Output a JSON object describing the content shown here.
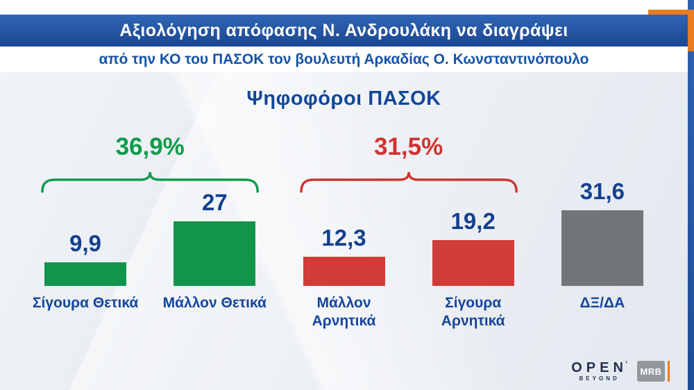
{
  "header": {
    "line1": "Αξιολόγηση απόφασης Ν. Ανδρουλάκη να διαγράψει",
    "line2": "από την ΚΟ του ΠΑΣΟΚ τον βουλευτή Αρκαδίας Ο. Κωνσταντινόπουλο"
  },
  "chart_data": {
    "type": "bar",
    "title": "Ψηφοφόροι ΠΑΣΟΚ",
    "categories": [
      "Σίγουρα Θετικά",
      "Μάλλον Θετικά",
      "Μάλλον Αρνητικά",
      "Σίγουρα Αρνητικά",
      "ΔΞ/ΔΑ"
    ],
    "values": [
      9.9,
      27,
      12.3,
      19.2,
      31.6
    ],
    "value_labels": [
      "9,9",
      "27",
      "12,3",
      "19,2",
      "31,6"
    ],
    "bar_colors": [
      "#12954a",
      "#12954a",
      "#d03c37",
      "#d03c37",
      "#737679"
    ],
    "groups": [
      {
        "label": "36,9%",
        "color": "#0f9b4a",
        "span": [
          0,
          1
        ]
      },
      {
        "label": "31,5%",
        "color": "#d0322f",
        "span": [
          2,
          3
        ]
      }
    ],
    "xlabel": "",
    "ylabel": "",
    "ylim": [
      0,
      35
    ],
    "grid": false,
    "legend": "none"
  },
  "colors": {
    "positive_green": "#12954a",
    "negative_red": "#d03c37",
    "neutral_gray": "#737679",
    "label_blue": "#13408f",
    "header_blue": "#24549f",
    "accent_orange": "#e87c1f"
  },
  "footer": {
    "open_logo": "OPEN",
    "open_mark": "’",
    "open_tagline": "BEYOND",
    "mrb_logo": "MRB"
  }
}
